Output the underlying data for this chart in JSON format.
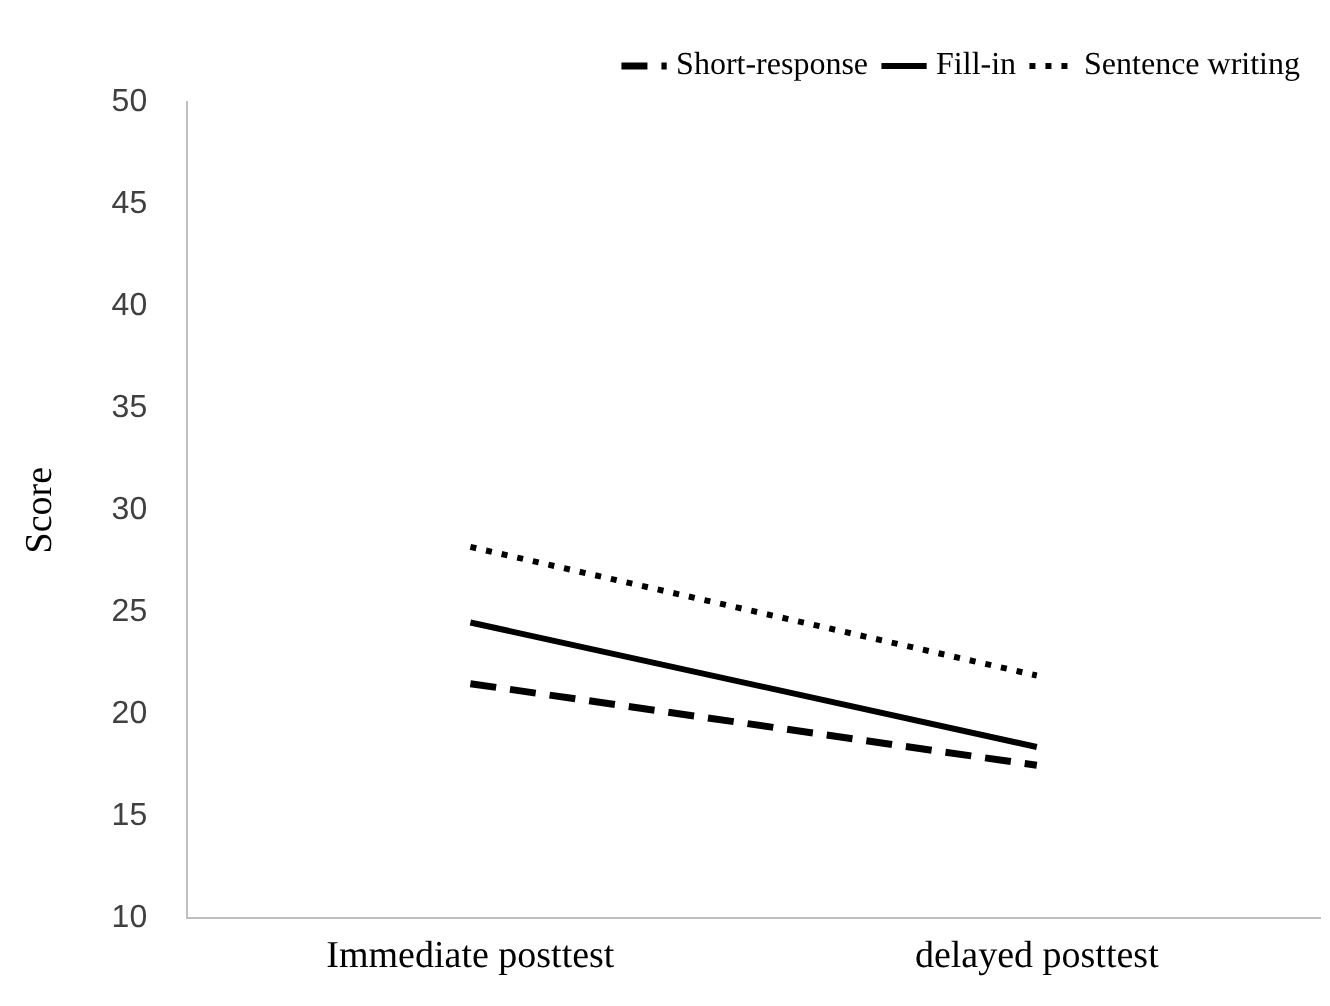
{
  "chart_data": {
    "type": "line",
    "ylabel": "Score",
    "categories": [
      "Immediate posttest",
      "delayed posttest"
    ],
    "series": [
      {
        "name": "Short-response",
        "color": "#000000",
        "line_style": "dashed",
        "values": [
          21.5,
          17.5
        ]
      },
      {
        "name": "Fill-in",
        "color": "#000000",
        "line_style": "solid",
        "values": [
          24.5,
          18.4
        ]
      },
      {
        "name": "Sentence writing",
        "color": "#000000",
        "line_style": "dotted",
        "values": [
          28.2,
          21.9
        ]
      }
    ],
    "ylim": [
      10,
      50
    ],
    "yticks": [
      10,
      15,
      20,
      25,
      30,
      35,
      40,
      45,
      50
    ],
    "grid": false,
    "legend": "top right",
    "marker": "none"
  }
}
